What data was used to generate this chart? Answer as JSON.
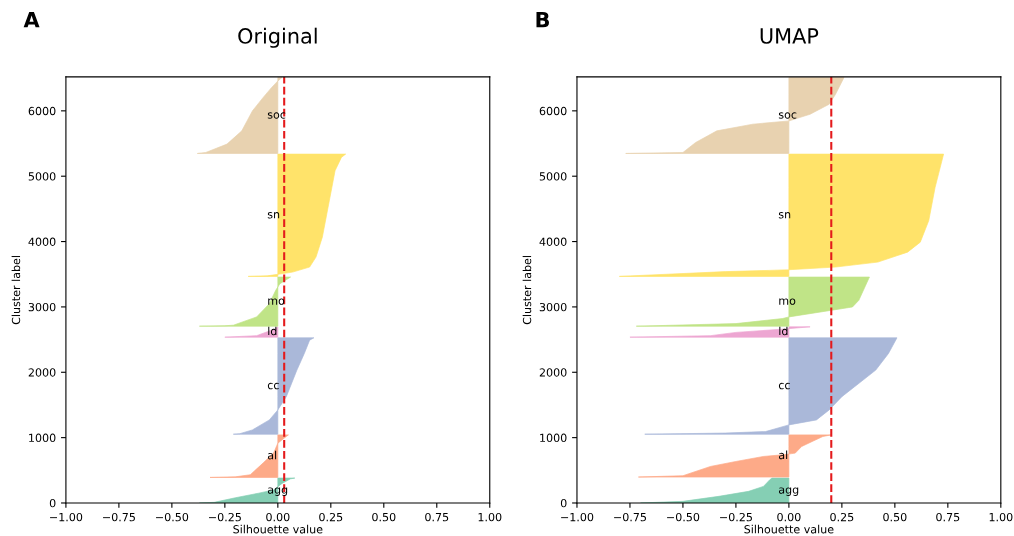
{
  "chart_data": [
    {
      "type": "area",
      "orientation": "horizontal",
      "title": "Original",
      "xlabel": "Silhouette value",
      "ylabel": "Cluster label",
      "annotations": [
        "A"
      ],
      "xlim": [
        -1,
        1
      ],
      "xticks": [
        {
          "value": -1,
          "label": "−1.00"
        },
        {
          "value": -0.75,
          "label": "−0.75"
        },
        {
          "value": -0.5,
          "label": "−0.50"
        },
        {
          "value": -0.25,
          "label": "−0.25"
        },
        {
          "value": 0,
          "label": "0.00"
        },
        {
          "value": 0.25,
          "label": "0.25"
        },
        {
          "value": 0.5,
          "label": "0.50"
        },
        {
          "value": 0.75,
          "label": "0.75"
        },
        {
          "value": 1,
          "label": "1.00"
        }
      ],
      "ylim": [
        0,
        6520
      ],
      "yticks": [
        0,
        1000,
        2000,
        3000,
        4000,
        5000,
        6000
      ],
      "ref_lines": [
        {
          "axis": "x",
          "value": 0.03,
          "color": "#e41a1c",
          "line_style": "dashed"
        }
      ],
      "series": [
        {
          "name": "agg",
          "color": "#85cfb4",
          "x": [
            0,
            10,
            80,
            150,
            200,
            300,
            370,
            381
          ],
          "values": [
            -0.37,
            -0.3,
            -0.2,
            -0.09,
            -0.02,
            0.02,
            0.06,
            0.08
          ]
        },
        {
          "name": "al",
          "color": "#fdaa88",
          "x": [
            391,
            400,
            432,
            610,
            763,
            915,
            1017,
            1042
          ],
          "values": [
            -0.32,
            -0.2,
            -0.13,
            -0.07,
            -0.02,
            0.0,
            0.04,
            0.05
          ]
        },
        {
          "name": "cc",
          "color": "#aab8d9",
          "x": [
            1052,
            1060,
            1118,
            1271,
            1424,
            1627,
            2034,
            2288,
            2491,
            2527
          ],
          "values": [
            -0.21,
            -0.18,
            -0.12,
            -0.04,
            0.0,
            0.04,
            0.09,
            0.125,
            0.15,
            0.17
          ]
        },
        {
          "name": "ld",
          "color": "#eda6d2",
          "x": [
            2537,
            2560,
            2620,
            2670,
            2695
          ],
          "values": [
            -0.25,
            -0.1,
            -0.05,
            -0.01,
            0.0
          ]
        },
        {
          "name": "mo",
          "color": "#c0e487",
          "x": [
            2705,
            2712,
            2720,
            2847,
            3050,
            3254,
            3355,
            3457
          ],
          "values": [
            -0.37,
            -0.25,
            -0.21,
            -0.1,
            -0.04,
            -0.01,
            0.01,
            0.06
          ]
        },
        {
          "name": "sn",
          "color": "#ffe36a",
          "x": [
            3467,
            3475,
            3498,
            3533,
            3610,
            3762,
            4067,
            4575,
            5084,
            5288,
            5338
          ],
          "values": [
            -0.14,
            -0.05,
            0.0,
            0.07,
            0.15,
            0.18,
            0.21,
            0.24,
            0.27,
            0.3,
            0.32
          ]
        },
        {
          "name": "soc",
          "color": "#e8d2b0",
          "x": [
            5348,
            5363,
            5491,
            5694,
            5999,
            6202,
            6355,
            6457,
            6510
          ],
          "values": [
            -0.38,
            -0.34,
            -0.24,
            -0.17,
            -0.12,
            -0.07,
            -0.03,
            0.0,
            0.02
          ]
        }
      ]
    },
    {
      "type": "area",
      "orientation": "horizontal",
      "title": "UMAP",
      "xlabel": "Silhouette value",
      "ylabel": "Cluster label",
      "annotations": [
        "B"
      ],
      "xlim": [
        -1,
        1
      ],
      "xticks": [
        {
          "value": -1,
          "label": "−1.00"
        },
        {
          "value": -0.75,
          "label": "−0.75"
        },
        {
          "value": -0.5,
          "label": "−0.50"
        },
        {
          "value": -0.25,
          "label": "−0.25"
        },
        {
          "value": 0,
          "label": "0.00"
        },
        {
          "value": 0.25,
          "label": "0.25"
        },
        {
          "value": 0.5,
          "label": "0.50"
        },
        {
          "value": 0.75,
          "label": "0.75"
        },
        {
          "value": 1,
          "label": "1.00"
        }
      ],
      "ylim": [
        0,
        6520
      ],
      "yticks": [
        0,
        1000,
        2000,
        3000,
        4000,
        5000,
        6000
      ],
      "ref_lines": [
        {
          "axis": "x",
          "value": 0.2,
          "color": "#e41a1c",
          "line_style": "dashed"
        }
      ],
      "series": [
        {
          "name": "agg",
          "color": "#85cfb4",
          "x": [
            0,
            25,
            102,
            178,
            254,
            356,
            381
          ],
          "values": [
            -0.7,
            -0.5,
            -0.33,
            -0.19,
            -0.12,
            -0.09,
            -0.08
          ]
        },
        {
          "name": "al",
          "color": "#fdaa88",
          "x": [
            397,
            417,
            559,
            635,
            712,
            740,
            763,
            864,
            941,
            1017,
            1042
          ],
          "values": [
            -0.71,
            -0.5,
            -0.37,
            -0.25,
            -0.12,
            -0.02,
            0.03,
            0.06,
            0.11,
            0.16,
            0.2
          ]
        },
        {
          "name": "cc",
          "color": "#aab8d9",
          "x": [
            1052,
            1070,
            1093,
            1195,
            1271,
            1424,
            1627,
            1779,
            2034,
            2288,
            2527
          ],
          "values": [
            -0.68,
            -0.3,
            -0.11,
            0.0,
            0.13,
            0.19,
            0.25,
            0.31,
            0.41,
            0.47,
            0.51
          ]
        },
        {
          "name": "ld",
          "color": "#eda6d2",
          "x": [
            2537,
            2560,
            2610,
            2660,
            2695
          ],
          "values": [
            -0.75,
            -0.37,
            -0.25,
            -0.03,
            0.1
          ]
        },
        {
          "name": "mo",
          "color": "#c0e487",
          "x": [
            2705,
            2745,
            2822,
            2847,
            2999,
            3101,
            3457
          ],
          "values": [
            -0.72,
            -0.25,
            -0.03,
            0.0,
            0.3,
            0.33,
            0.38
          ]
        },
        {
          "name": "sn",
          "color": "#ffe36a",
          "x": [
            3467,
            3540,
            3559,
            3569,
            3610,
            3686,
            3838,
            3991,
            4321,
            4830,
            5338
          ],
          "values": [
            -0.8,
            -0.3,
            -0.09,
            0.0,
            0.22,
            0.42,
            0.56,
            0.62,
            0.66,
            0.69,
            0.73
          ]
        },
        {
          "name": "soc",
          "color": "#e8d2b0",
          "x": [
            5348,
            5363,
            5516,
            5694,
            5796,
            5846,
            5897,
            5948,
            6101,
            6253,
            6510
          ],
          "values": [
            -0.77,
            -0.5,
            -0.44,
            -0.34,
            -0.17,
            0.0,
            0.05,
            0.1,
            0.19,
            0.22,
            0.26
          ]
        }
      ]
    }
  ]
}
